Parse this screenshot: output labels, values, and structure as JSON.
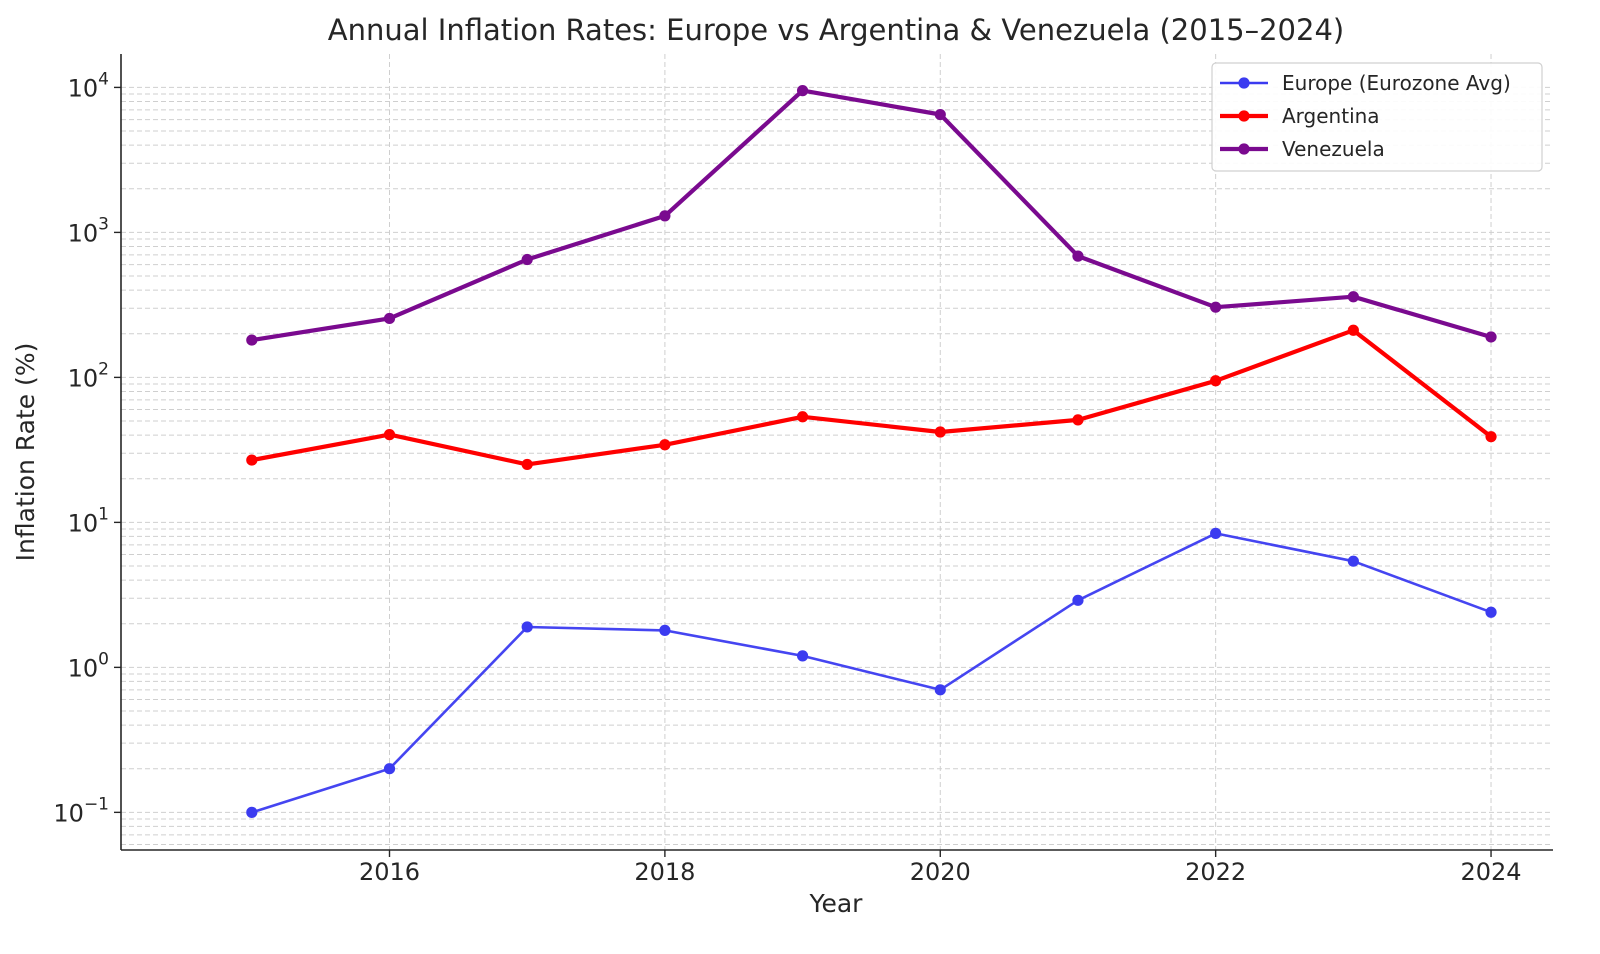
{
  "chart_data": {
    "type": "line",
    "title": "Annual Inflation Rates: Europe vs Argentina & Venezuela (2015–2024)",
    "xlabel": "Year",
    "ylabel": "Inflation Rate (%)",
    "x": [
      2015,
      2016,
      2017,
      2018,
      2019,
      2020,
      2021,
      2022,
      2023,
      2024
    ],
    "xlim": [
      2014.05,
      2024.45
    ],
    "x_ticks": [
      2016,
      2018,
      2020,
      2022,
      2024
    ],
    "x_tick_labels": [
      "2016",
      "2018",
      "2020",
      "2022",
      "2024"
    ],
    "y_scale": "log",
    "ylim": [
      0.055,
      17000
    ],
    "y_ticks": [
      0.1,
      1,
      10,
      100,
      1000,
      10000
    ],
    "y_tick_labels": [
      {
        "base": "10",
        "exp": "−1"
      },
      {
        "base": "10",
        "exp": "0"
      },
      {
        "base": "10",
        "exp": "1"
      },
      {
        "base": "10",
        "exp": "2"
      },
      {
        "base": "10",
        "exp": "3"
      },
      {
        "base": "10",
        "exp": "4"
      }
    ],
    "grid": true,
    "legend_position": "top-right",
    "series": [
      {
        "name": "Europe (Eurozone Avg)",
        "color": "#3b3bf0",
        "values": [
          0.1,
          0.2,
          1.9,
          1.8,
          1.2,
          0.7,
          2.9,
          8.4,
          5.4,
          2.4
        ]
      },
      {
        "name": "Argentina",
        "color": "#ff0000",
        "values": [
          26.9,
          40.3,
          25.1,
          34.3,
          53.5,
          42.0,
          50.9,
          94.8,
          211.4,
          39.0
        ]
      },
      {
        "name": "Venezuela",
        "color": "#7a0a8f",
        "values": [
          180.9,
          255.0,
          650.0,
          1300.0,
          9500.0,
          6500.0,
          686.0,
          305.0,
          360.0,
          190.0
        ]
      }
    ]
  }
}
